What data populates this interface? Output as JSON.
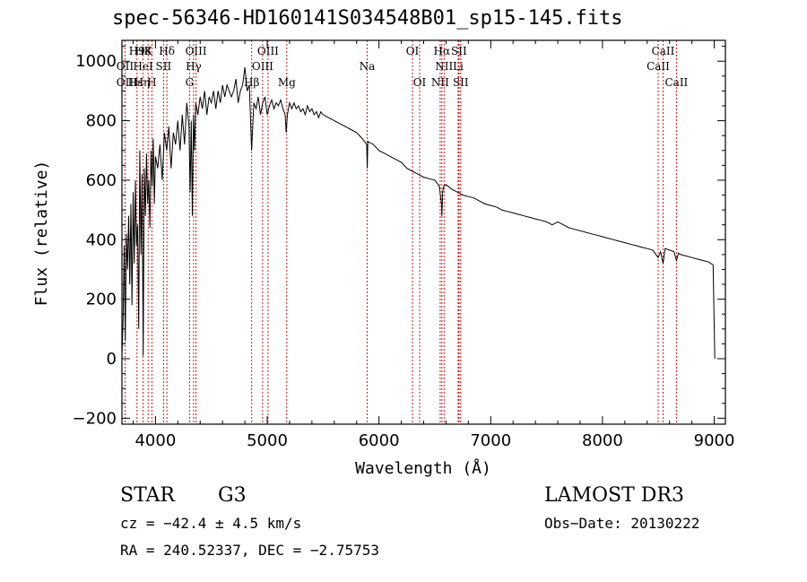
{
  "chart_data": {
    "type": "line",
    "title": "spec-56346-HD160141S034548B01_sp15-145.fits",
    "xlabel": "Wavelength (Å)",
    "ylabel": "Flux (relative)",
    "xlim": [
      3700,
      9100
    ],
    "ylim": [
      -220,
      1070
    ],
    "xticks": [
      {
        "value": 4000,
        "label": "4000"
      },
      {
        "value": 5000,
        "label": "5000"
      },
      {
        "value": 6000,
        "label": "6000"
      },
      {
        "value": 7000,
        "label": "7000"
      },
      {
        "value": 8000,
        "label": "8000"
      },
      {
        "value": 9000,
        "label": "9000"
      }
    ],
    "yticks": [
      {
        "value": -200,
        "label": "−200"
      },
      {
        "value": 0,
        "label": "0"
      },
      {
        "value": 200,
        "label": "200"
      },
      {
        "value": 400,
        "label": "400"
      },
      {
        "value": 600,
        "label": "600"
      },
      {
        "value": 800,
        "label": "800"
      },
      {
        "value": 1000,
        "label": "1000"
      }
    ],
    "series": [
      {
        "name": "spectrum",
        "color": "#000000",
        "x": [
          3700,
          3710,
          3720,
          3730,
          3740,
          3750,
          3760,
          3770,
          3780,
          3790,
          3800,
          3810,
          3820,
          3830,
          3840,
          3850,
          3860,
          3870,
          3880,
          3890,
          3900,
          3910,
          3920,
          3930,
          3940,
          3950,
          3960,
          3970,
          3980,
          3990,
          4000,
          4020,
          4040,
          4060,
          4080,
          4100,
          4120,
          4140,
          4160,
          4180,
          4200,
          4220,
          4240,
          4260,
          4280,
          4300,
          4310,
          4320,
          4330,
          4340,
          4350,
          4360,
          4380,
          4400,
          4420,
          4440,
          4460,
          4480,
          4500,
          4520,
          4540,
          4560,
          4580,
          4600,
          4620,
          4640,
          4660,
          4680,
          4700,
          4720,
          4740,
          4760,
          4780,
          4800,
          4820,
          4840,
          4860,
          4880,
          4900,
          4920,
          4940,
          4960,
          4980,
          5000,
          5020,
          5040,
          5060,
          5080,
          5100,
          5120,
          5140,
          5160,
          5170,
          5180,
          5200,
          5220,
          5240,
          5260,
          5280,
          5300,
          5320,
          5340,
          5360,
          5380,
          5400,
          5420,
          5440,
          5460,
          5480,
          5500,
          5550,
          5600,
          5650,
          5700,
          5750,
          5800,
          5850,
          5890,
          5895,
          5900,
          5950,
          6000,
          6050,
          6100,
          6150,
          6200,
          6250,
          6300,
          6350,
          6400,
          6450,
          6500,
          6520,
          6540,
          6560,
          6563,
          6570,
          6580,
          6600,
          6650,
          6700,
          6750,
          6800,
          6850,
          6900,
          6950,
          7000,
          7050,
          7100,
          7150,
          7200,
          7250,
          7300,
          7350,
          7400,
          7450,
          7500,
          7550,
          7600,
          7650,
          7700,
          7750,
          7800,
          7850,
          7900,
          7950,
          8000,
          8050,
          8100,
          8150,
          8200,
          8250,
          8300,
          8350,
          8400,
          8450,
          8498,
          8520,
          8542,
          8560,
          8600,
          8640,
          8662,
          8680,
          8700,
          8750,
          8800,
          8850,
          8900,
          8950,
          8990,
          9000,
          9005
        ],
        "y": [
          10,
          120,
          380,
          60,
          420,
          300,
          480,
          250,
          520,
          180,
          560,
          320,
          600,
          380,
          450,
          100,
          700,
          350,
          620,
          10,
          640,
          480,
          690,
          520,
          600,
          440,
          700,
          580,
          740,
          520,
          680,
          640,
          720,
          600,
          760,
          700,
          780,
          640,
          760,
          720,
          800,
          700,
          820,
          720,
          860,
          780,
          560,
          800,
          480,
          820,
          700,
          860,
          820,
          880,
          840,
          900,
          820,
          880,
          860,
          900,
          840,
          900,
          860,
          920,
          880,
          920,
          900,
          880,
          900,
          940,
          860,
          900,
          920,
          980,
          900,
          920,
          700,
          860,
          840,
          880,
          820,
          860,
          880,
          820,
          850,
          870,
          840,
          860,
          850,
          870,
          840,
          820,
          760,
          820,
          860,
          840,
          860,
          840,
          850,
          830,
          840,
          820,
          850,
          830,
          840,
          820,
          830,
          810,
          830,
          820,
          810,
          800,
          790,
          780,
          770,
          760,
          740,
          720,
          640,
          730,
          720,
          700,
          690,
          680,
          670,
          660,
          640,
          630,
          620,
          610,
          605,
          600,
          590,
          580,
          520,
          480,
          560,
          580,
          585,
          570,
          560,
          550,
          545,
          540,
          530,
          520,
          515,
          510,
          500,
          495,
          490,
          485,
          480,
          475,
          470,
          465,
          460,
          450,
          460,
          450,
          440,
          435,
          430,
          425,
          420,
          415,
          410,
          405,
          400,
          395,
          390,
          385,
          380,
          375,
          370,
          365,
          340,
          360,
          320,
          370,
          365,
          360,
          330,
          355,
          350,
          345,
          340,
          335,
          330,
          325,
          315,
          110,
          0
        ]
      }
    ],
    "lines": [
      {
        "name": "OII",
        "wavelength": 3727
      },
      {
        "name": "H9",
        "wavelength": 3835
      },
      {
        "name": "H8",
        "wavelength": 3889
      },
      {
        "name": "K",
        "wavelength": 3934
      },
      {
        "name": "H",
        "wavelength": 3968
      },
      {
        "name": "SII",
        "wavelength": 4072
      },
      {
        "name": "Hδ",
        "wavelength": 4102
      },
      {
        "name": "G",
        "wavelength": 4305
      },
      {
        "name": "Hγ",
        "wavelength": 4341
      },
      {
        "name": "OIII",
        "wavelength": 4363
      },
      {
        "name": "Hβ",
        "wavelength": 4861
      },
      {
        "name": "OIII",
        "wavelength": 4959
      },
      {
        "name": "OIII",
        "wavelength": 5007
      },
      {
        "name": "Mg",
        "wavelength": 5175
      },
      {
        "name": "Na",
        "wavelength": 5894
      },
      {
        "name": "OI",
        "wavelength": 6300
      },
      {
        "name": "OI",
        "wavelength": 6364
      },
      {
        "name": "NII",
        "wavelength": 6548
      },
      {
        "name": "Hα",
        "wavelength": 6563
      },
      {
        "name": "NII",
        "wavelength": 6583
      },
      {
        "name": "Li",
        "wavelength": 6708
      },
      {
        "name": "SII",
        "wavelength": 6716
      },
      {
        "name": "SII",
        "wavelength": 6731
      },
      {
        "name": "CaII",
        "wavelength": 8498
      },
      {
        "name": "CaII",
        "wavelength": 8542
      },
      {
        "name": "CaII",
        "wavelength": 8662
      }
    ],
    "line_labels": [
      {
        "text": "H9",
        "wavelength": 3835,
        "row": 0
      },
      {
        "text": "H8",
        "wavelength": 3889,
        "row": 0
      },
      {
        "text": "K",
        "wavelength": 3934,
        "row": 0
      },
      {
        "text": "Hδ",
        "wavelength": 4102,
        "row": 0
      },
      {
        "text": "OIII",
        "wavelength": 4363,
        "row": 0
      },
      {
        "text": "OIII",
        "wavelength": 5007,
        "row": 0
      },
      {
        "text": "OI",
        "wavelength": 6300,
        "row": 0
      },
      {
        "text": "Hα",
        "wavelength": 6563,
        "row": 0
      },
      {
        "text": "SII",
        "wavelength": 6716,
        "row": 0
      },
      {
        "text": "CaII",
        "wavelength": 8542,
        "row": 0
      },
      {
        "text": "OII",
        "wavelength": 3727,
        "row": 1
      },
      {
        "text": "HeI",
        "wavelength": 3889,
        "row": 1
      },
      {
        "text": "SII",
        "wavelength": 4072,
        "row": 1
      },
      {
        "text": "Hγ",
        "wavelength": 4341,
        "row": 1
      },
      {
        "text": "OIII",
        "wavelength": 4959,
        "row": 1
      },
      {
        "text": "Na",
        "wavelength": 5894,
        "row": 1
      },
      {
        "text": "NII",
        "wavelength": 6583,
        "row": 1
      },
      {
        "text": "Li",
        "wavelength": 6708,
        "row": 1
      },
      {
        "text": "CaII",
        "wavelength": 8498,
        "row": 1
      },
      {
        "text": "OII",
        "wavelength": 3727,
        "row": 2
      },
      {
        "text": "Hε",
        "wavelength": 3820,
        "row": 2
      },
      {
        "text": "Hη",
        "wavelength": 3880,
        "row": 2
      },
      {
        "text": "H",
        "wavelength": 3968,
        "row": 2
      },
      {
        "text": "G",
        "wavelength": 4305,
        "row": 2
      },
      {
        "text": "Hβ",
        "wavelength": 4861,
        "row": 2
      },
      {
        "text": "Mg",
        "wavelength": 5175,
        "row": 2
      },
      {
        "text": "OI",
        "wavelength": 6364,
        "row": 2
      },
      {
        "text": "NII",
        "wavelength": 6548,
        "row": 2
      },
      {
        "text": "SII",
        "wavelength": 6731,
        "row": 2
      },
      {
        "text": "CaII",
        "wavelength": 8662,
        "row": 2
      }
    ],
    "line_color": "#cc0000",
    "grid": false
  },
  "info": {
    "class": "STAR",
    "subclass": "G3",
    "survey": "LAMOST DR3",
    "cz": "cz = −42.4 ± 4.5 km/s",
    "obs_date": "Obs−Date: 20130222",
    "radec": "RA = 240.52337, DEC =  −2.75753"
  }
}
